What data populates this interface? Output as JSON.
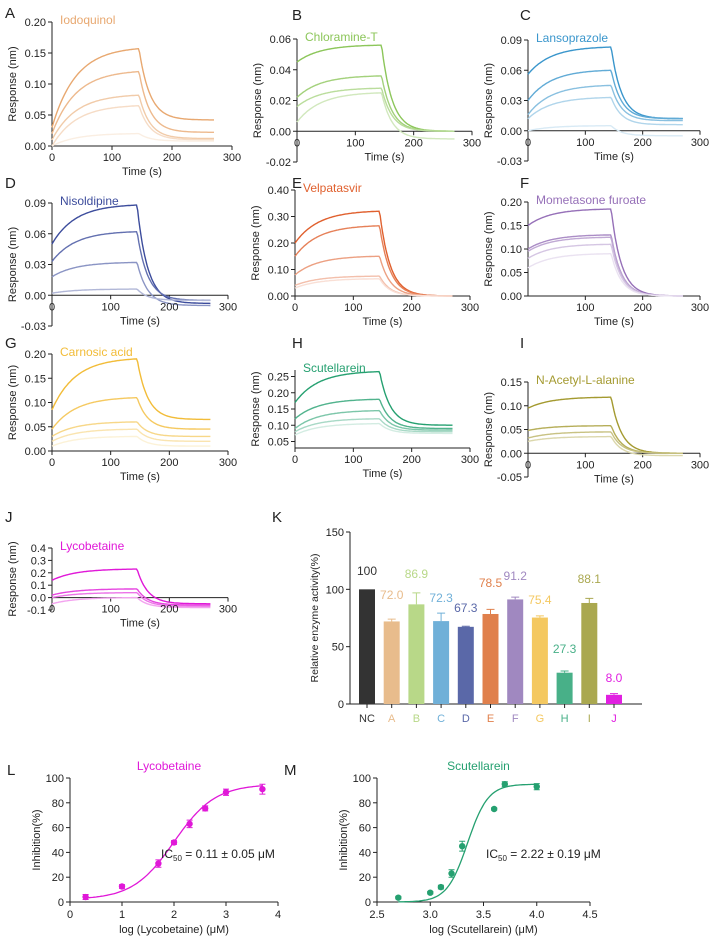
{
  "chart_data": [
    {
      "panel": "A",
      "type": "line",
      "title": "Iodoquinol",
      "color": "#e8a870",
      "xlabel": "Time (s)",
      "ylabel": "Response (nm)",
      "xlim": [
        0,
        300
      ],
      "ylim": [
        0,
        0.2
      ],
      "xticks": [
        0,
        100,
        200,
        300
      ],
      "yticks": [
        "0.00",
        "0.05",
        "0.10",
        "0.15",
        "0.20"
      ],
      "series": [
        {
          "start": 0.03,
          "peak": 0.157,
          "end": 0.042
        },
        {
          "start": 0.02,
          "peak": 0.12,
          "end": 0.022
        },
        {
          "start": 0.01,
          "peak": 0.082,
          "end": 0.012
        },
        {
          "start": 0.0,
          "peak": 0.065,
          "end": 0.01
        },
        {
          "start": 0.0,
          "peak": 0.02,
          "end": 0.008
        }
      ]
    },
    {
      "panel": "B",
      "type": "line",
      "title": "Chloramine-T",
      "color": "#8cc65a",
      "xlabel": "Time (s)",
      "ylabel": "Response (nm)",
      "xlim": [
        0,
        300
      ],
      "ylim": [
        -0.02,
        0.06
      ],
      "xticks": [
        0,
        100,
        200,
        300
      ],
      "yticks": [
        "-0.02",
        "0.00",
        "0.02",
        "0.04",
        "0.06"
      ],
      "series": [
        {
          "start": 0.045,
          "peak": 0.056,
          "end": 0.0
        },
        {
          "start": 0.022,
          "peak": 0.036,
          "end": 0.0
        },
        {
          "start": 0.016,
          "peak": 0.028,
          "end": 0.0
        },
        {
          "start": 0.006,
          "peak": 0.025,
          "end": -0.005
        }
      ]
    },
    {
      "panel": "C",
      "type": "line",
      "title": "Lansoprazole",
      "color": "#3a96cc",
      "xlabel": "Time (s)",
      "ylabel": "Response (nm)",
      "xlim": [
        0,
        300
      ],
      "ylim": [
        -0.03,
        0.09
      ],
      "xticks": [
        0,
        100,
        200,
        300
      ],
      "yticks": [
        "-0.03",
        "0.00",
        "0.03",
        "0.06",
        "0.09"
      ],
      "series": [
        {
          "start": 0.056,
          "peak": 0.083,
          "end": 0.012
        },
        {
          "start": 0.03,
          "peak": 0.06,
          "end": 0.012
        },
        {
          "start": 0.016,
          "peak": 0.045,
          "end": 0.01
        },
        {
          "start": 0.012,
          "peak": 0.033,
          "end": 0.006
        },
        {
          "start": 0.0,
          "peak": 0.005,
          "end": -0.005
        }
      ]
    },
    {
      "panel": "D",
      "type": "line",
      "title": "Nisoldipine",
      "color": "#3c4c9c",
      "xlabel": "Time (s)",
      "ylabel": "Response (nm)",
      "xlim": [
        0,
        300
      ],
      "ylim": [
        -0.03,
        0.09
      ],
      "xticks": [
        0,
        100,
        200,
        300
      ],
      "yticks": [
        "-0.03",
        "0.00",
        "0.03",
        "0.06",
        "0.09"
      ],
      "series": [
        {
          "start": 0.05,
          "peak": 0.088,
          "end": -0.008
        },
        {
          "start": 0.033,
          "peak": 0.062,
          "end": -0.005
        },
        {
          "start": 0.018,
          "peak": 0.032,
          "end": -0.01
        },
        {
          "start": 0.002,
          "peak": 0.006,
          "end": -0.005
        }
      ]
    },
    {
      "panel": "E",
      "type": "line",
      "title": "Velpatasvir",
      "color": "#e0602e",
      "xlabel": "Time (s)",
      "ylabel": "Response (nm)",
      "xlim": [
        0,
        300
      ],
      "ylim": [
        0,
        0.4
      ],
      "xticks": [
        0,
        100,
        200,
        300
      ],
      "yticks": [
        "0.00",
        "0.10",
        "0.20",
        "0.30",
        "0.40"
      ],
      "series": [
        {
          "start": 0.2,
          "peak": 0.32,
          "end": 0.0
        },
        {
          "start": 0.15,
          "peak": 0.265,
          "end": 0.0
        },
        {
          "start": 0.08,
          "peak": 0.15,
          "end": 0.0
        },
        {
          "start": 0.04,
          "peak": 0.075,
          "end": 0.0
        },
        {
          "start": 0.03,
          "peak": 0.065,
          "end": 0.0
        }
      ]
    },
    {
      "panel": "F",
      "type": "line",
      "title": "Mometasone furoate",
      "color": "#9670b8",
      "xlabel": "Time (s)",
      "ylabel": "Response (nm)",
      "xlim": [
        0,
        300
      ],
      "ylim": [
        0,
        0.2
      ],
      "xticks": [
        100,
        200,
        300
      ],
      "yticks": [
        "0.00",
        "0.05",
        "0.10",
        "0.15",
        "0.20"
      ],
      "series": [
        {
          "start": 0.15,
          "peak": 0.185,
          "end": 0.0
        },
        {
          "start": 0.1,
          "peak": 0.13,
          "end": 0.0
        },
        {
          "start": 0.095,
          "peak": 0.125,
          "end": 0.0
        },
        {
          "start": 0.08,
          "peak": 0.11,
          "end": 0.0
        },
        {
          "start": 0.06,
          "peak": 0.09,
          "end": 0.0
        }
      ]
    },
    {
      "panel": "G",
      "type": "line",
      "title": "Carnosic acid",
      "color": "#f2bc38",
      "xlabel": "Time (s)",
      "ylabel": "Response (nm)",
      "xlim": [
        0,
        300
      ],
      "ylim": [
        0,
        0.2
      ],
      "xticks": [
        0,
        100,
        200,
        300
      ],
      "yticks": [
        "0.00",
        "0.05",
        "0.10",
        "0.15",
        "0.20"
      ],
      "series": [
        {
          "start": 0.085,
          "peak": 0.19,
          "end": 0.065
        },
        {
          "start": 0.045,
          "peak": 0.11,
          "end": 0.045
        },
        {
          "start": 0.03,
          "peak": 0.06,
          "end": 0.03
        },
        {
          "start": 0.02,
          "peak": 0.045,
          "end": 0.02
        },
        {
          "start": 0.01,
          "peak": 0.03,
          "end": 0.01
        }
      ]
    },
    {
      "panel": "H",
      "type": "line",
      "title": "Scutellarein",
      "color": "#25a070",
      "xlabel": "Time (s)",
      "ylabel": "Response (nm)",
      "xlim": [
        0,
        300
      ],
      "ylim": [
        0.03,
        0.27
      ],
      "xticks": [
        0,
        100,
        200,
        300
      ],
      "yticks": [
        "0.05",
        "0.10",
        "0.15",
        "0.20",
        "0.25"
      ],
      "series": [
        {
          "start": 0.17,
          "peak": 0.265,
          "end": 0.1
        },
        {
          "start": 0.12,
          "peak": 0.18,
          "end": 0.09
        },
        {
          "start": 0.09,
          "peak": 0.145,
          "end": 0.085
        },
        {
          "start": 0.08,
          "peak": 0.12,
          "end": 0.08
        },
        {
          "start": 0.07,
          "peak": 0.105,
          "end": 0.075
        }
      ]
    },
    {
      "panel": "I",
      "type": "line",
      "title": "N-Acetyl-L-alanine",
      "color": "#a49a30",
      "xlabel": "Time (s)",
      "ylabel": "Response (nm)",
      "xlim": [
        0,
        300
      ],
      "ylim": [
        -0.05,
        0.15
      ],
      "xticks": [
        0,
        100,
        200,
        300
      ],
      "yticks": [
        "-0.05",
        "0.00",
        "0.05",
        "0.10",
        "0.15"
      ],
      "series": [
        {
          "start": 0.095,
          "peak": 0.118,
          "end": 0.0
        },
        {
          "start": 0.048,
          "peak": 0.058,
          "end": 0.0
        },
        {
          "start": 0.032,
          "peak": 0.045,
          "end": 0.0
        },
        {
          "start": 0.025,
          "peak": 0.035,
          "end": -0.005
        }
      ]
    },
    {
      "panel": "J",
      "type": "line",
      "title": "Lycobetaine",
      "color": "#e018d8",
      "xlabel": "Time (s)",
      "ylabel": "Response (nm)",
      "xlim": [
        0,
        300
      ],
      "ylim": [
        -0.1,
        0.4
      ],
      "xticks": [
        0,
        100,
        200,
        300
      ],
      "yticks": [
        "-0.1",
        "0.0",
        "0.1",
        "0.2",
        "0.3",
        "0.4"
      ],
      "series": [
        {
          "start": 0.14,
          "peak": 0.23,
          "end": -0.05
        },
        {
          "start": 0.02,
          "peak": 0.07,
          "end": -0.06
        },
        {
          "start": 0.0,
          "peak": 0.04,
          "end": -0.07
        },
        {
          "start": -0.05,
          "peak": 0.0,
          "end": -0.08
        }
      ]
    },
    {
      "panel": "K",
      "type": "bar",
      "ylabel": "Relative enzyme activity(%)",
      "ylim": [
        0,
        150
      ],
      "yticks": [
        0,
        50,
        100,
        150
      ],
      "categories": [
        "NC",
        "A",
        "B",
        "C",
        "D",
        "E",
        "F",
        "G",
        "H",
        "I",
        "J"
      ],
      "values": [
        100,
        72.0,
        86.9,
        72.3,
        67.3,
        78.5,
        91.2,
        75.4,
        27.3,
        88.1,
        8.0
      ],
      "labels": [
        "100",
        "72.0",
        "86.9",
        "72.3",
        "67.3",
        "78.5",
        "91.2",
        "75.4",
        "27.3",
        "88.1",
        "8.0"
      ],
      "errors": [
        0,
        2,
        10,
        7,
        0.5,
        4,
        2,
        1.5,
        1.5,
        4,
        1
      ],
      "colors": [
        "#333333",
        "#e8bc8c",
        "#b8d888",
        "#70b0d8",
        "#5a68a8",
        "#e0804c",
        "#a088c0",
        "#f4c860",
        "#48b088",
        "#aaa850",
        "#e020e0"
      ]
    },
    {
      "panel": "L",
      "type": "scatter",
      "title": "Lycobetaine",
      "color": "#e018d8",
      "xlabel": "log (Lycobetaine) (μM)",
      "ylabel": "Inhibition(%)",
      "xlim": [
        0,
        4
      ],
      "ylim": [
        0,
        100
      ],
      "xticks": [
        0,
        1,
        2,
        3,
        4
      ],
      "yticks": [
        0,
        20,
        40,
        60,
        80,
        100
      ],
      "annotation": "IC",
      "annotation_sub": "50",
      "annotation_rest": " = 0.11 ± 0.05 μM",
      "x": [
        0.3,
        1,
        1.7,
        2,
        2.3,
        2.6,
        3,
        3.7
      ],
      "y": [
        4,
        12.5,
        31,
        48,
        63,
        75.5,
        88.5,
        91
      ],
      "err": [
        2,
        1.5,
        3,
        1.5,
        3,
        2,
        2.5,
        4
      ]
    },
    {
      "panel": "M",
      "type": "scatter",
      "title": "Scutellarein",
      "color": "#25a070",
      "xlabel": "log (Scutellarein) (μM)",
      "ylabel": "Inhibition(%)",
      "xlim": [
        2.5,
        4.5
      ],
      "ylim": [
        0,
        100
      ],
      "xticks": [
        "2.5",
        "3.0",
        "3.5",
        "4.0",
        "4.5"
      ],
      "yticks": [
        0,
        20,
        40,
        60,
        80,
        100
      ],
      "annotation": "IC",
      "annotation_sub": "50",
      "annotation_rest": " = 2.22 ± 0.19 μM",
      "x": [
        2.7,
        3.0,
        3.1,
        3.2,
        3.3,
        3.6,
        3.7,
        4.0
      ],
      "y": [
        3.5,
        7.5,
        12,
        23,
        45,
        75,
        95,
        93
      ],
      "err": [
        1,
        1,
        1.5,
        3,
        4,
        1,
        2,
        2.5
      ]
    }
  ]
}
